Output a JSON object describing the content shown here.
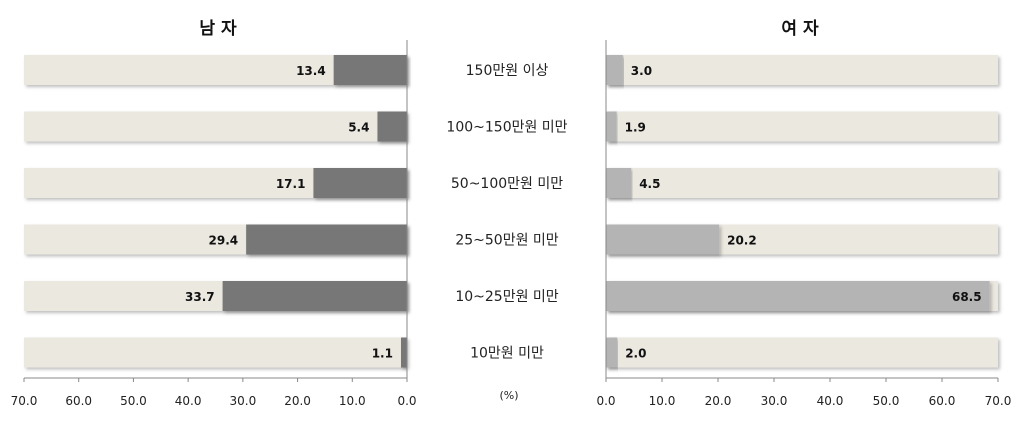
{
  "chart_data": {
    "type": "bar",
    "orientation": "horizontal",
    "title": "",
    "left_title": "남 자",
    "right_title": "여 자",
    "unit_label": "(%)",
    "categories": [
      "150만원 이상",
      "100~150만원 미만",
      "50~100만원 미만",
      "25~50만원 미만",
      "10~25만원 미만",
      "10만원 미만"
    ],
    "series": [
      {
        "name": "남 자",
        "values": [
          13.4,
          5.4,
          17.1,
          29.4,
          33.7,
          1.1
        ]
      },
      {
        "name": "여 자",
        "values": [
          3.0,
          1.9,
          4.5,
          20.2,
          68.5,
          2.0
        ]
      }
    ],
    "value_labels": {
      "left": [
        "13.4",
        "5.4",
        "17.1",
        "29.4",
        "33.7",
        "1.1"
      ],
      "right": [
        "3.0",
        "1.9",
        "4.5",
        "20.2",
        "68.5",
        "2.0"
      ]
    },
    "xlim": [
      0,
      70
    ],
    "left_ticks": [
      "70.0",
      "60.0",
      "50.0",
      "40.0",
      "30.0",
      "20.0",
      "10.0",
      "0.0"
    ],
    "right_ticks": [
      "0.0",
      "10.0",
      "20.0",
      "30.0",
      "40.0",
      "50.0",
      "60.0",
      "70.0"
    ],
    "grid": false,
    "colors": {
      "track": "#ebe8e0",
      "male_bar": "#777777",
      "female_bar": "#b4b4b4",
      "axis": "#888888"
    }
  }
}
